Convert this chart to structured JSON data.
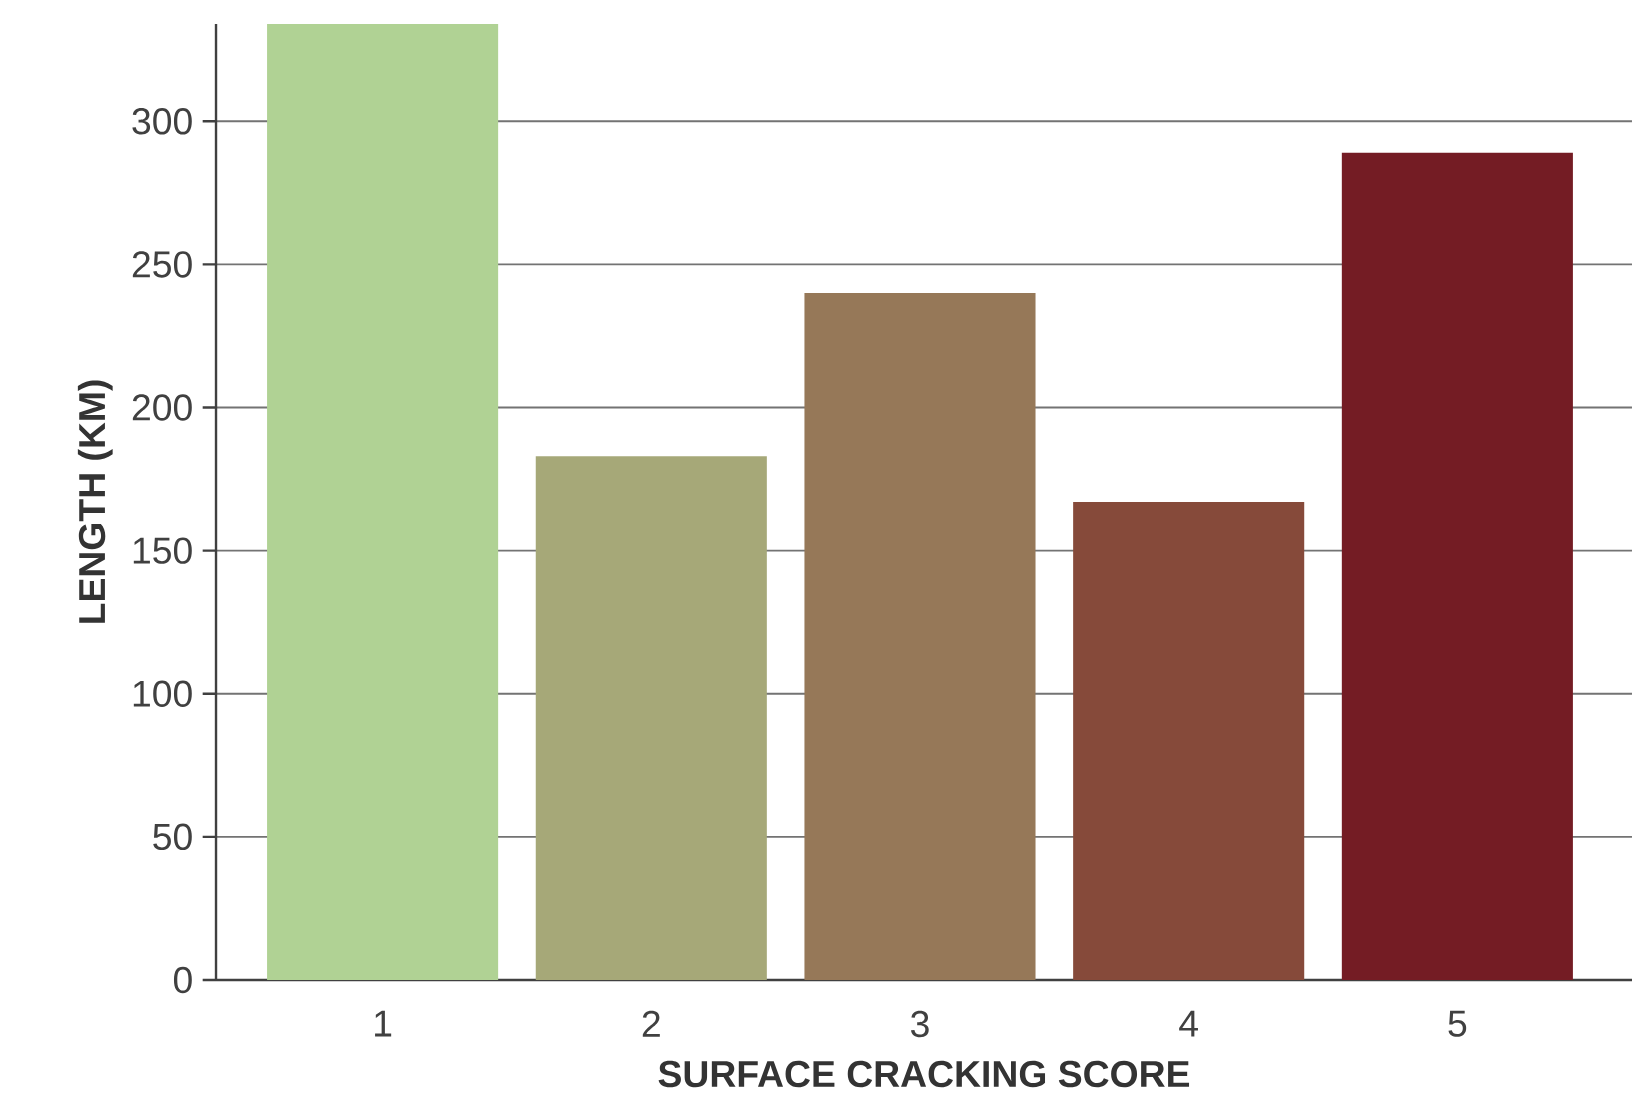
{
  "chart_data": {
    "type": "bar",
    "xlabel": "SURFACE CRACKING SCORE",
    "ylabel": "LENGTH (KM)",
    "categories": [
      "1",
      "2",
      "3",
      "4",
      "5"
    ],
    "values": [
      334,
      183,
      240,
      167,
      289
    ],
    "colors": [
      "#b0d294",
      "#a6a878",
      "#967858",
      "#864a3a",
      "#741c24"
    ],
    "ylim": [
      0,
      334
    ],
    "yticks": [
      0,
      50,
      100,
      150,
      200,
      250,
      300
    ],
    "grid": "y"
  }
}
